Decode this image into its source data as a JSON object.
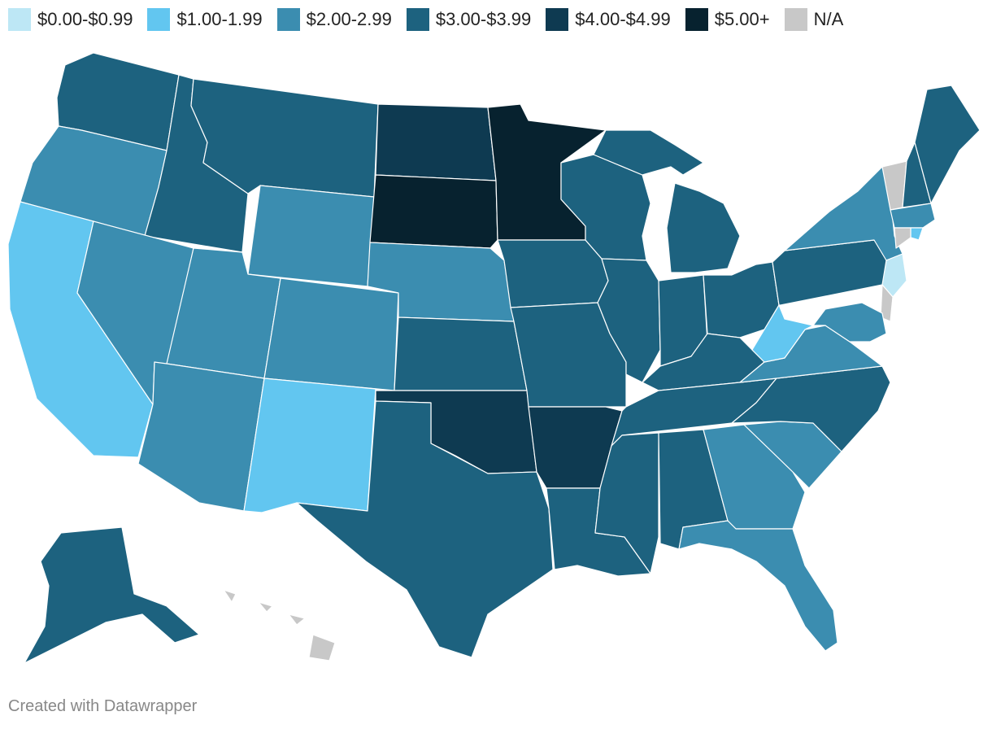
{
  "legend": [
    {
      "label": "$0.00-$0.99",
      "color": "#bde7f5"
    },
    {
      "label": "$1.00-1.99",
      "color": "#62c6f0"
    },
    {
      "label": "$2.00-2.99",
      "color": "#3b8db0"
    },
    {
      "label": "$3.00-$3.99",
      "color": "#1d627f"
    },
    {
      "label": "$4.00-$4.99",
      "color": "#0e3a51"
    },
    {
      "label": "$5.00+",
      "color": "#07222f"
    },
    {
      "label": "N/A",
      "color": "#c8c8c8"
    }
  ],
  "credit": "Created with Datawrapper",
  "map": {
    "states": [
      {
        "id": "WA",
        "cat": 3
      },
      {
        "id": "OR",
        "cat": 2
      },
      {
        "id": "CA",
        "cat": 1
      },
      {
        "id": "ID",
        "cat": 3
      },
      {
        "id": "NV",
        "cat": 2
      },
      {
        "id": "MT",
        "cat": 3
      },
      {
        "id": "WY",
        "cat": 2
      },
      {
        "id": "UT",
        "cat": 2
      },
      {
        "id": "AZ",
        "cat": 2
      },
      {
        "id": "CO",
        "cat": 2
      },
      {
        "id": "NM",
        "cat": 1
      },
      {
        "id": "ND",
        "cat": 4
      },
      {
        "id": "SD",
        "cat": 5
      },
      {
        "id": "NE",
        "cat": 2
      },
      {
        "id": "KS",
        "cat": 3
      },
      {
        "id": "OK",
        "cat": 4
      },
      {
        "id": "TX",
        "cat": 3
      },
      {
        "id": "MN",
        "cat": 5
      },
      {
        "id": "IA",
        "cat": 3
      },
      {
        "id": "MO",
        "cat": 3
      },
      {
        "id": "AR",
        "cat": 4
      },
      {
        "id": "LA",
        "cat": 3
      },
      {
        "id": "WI",
        "cat": 3
      },
      {
        "id": "IL",
        "cat": 3
      },
      {
        "id": "MI",
        "cat": 3
      },
      {
        "id": "IN",
        "cat": 3
      },
      {
        "id": "OH",
        "cat": 3
      },
      {
        "id": "KY",
        "cat": 3
      },
      {
        "id": "TN",
        "cat": 3
      },
      {
        "id": "MS",
        "cat": 3
      },
      {
        "id": "AL",
        "cat": 3
      },
      {
        "id": "GA",
        "cat": 2
      },
      {
        "id": "FL",
        "cat": 2
      },
      {
        "id": "SC",
        "cat": 2
      },
      {
        "id": "NC",
        "cat": 3
      },
      {
        "id": "VA",
        "cat": 2
      },
      {
        "id": "WV",
        "cat": 1
      },
      {
        "id": "PA",
        "cat": 3
      },
      {
        "id": "NY",
        "cat": 2
      },
      {
        "id": "VT",
        "cat": 6
      },
      {
        "id": "NH",
        "cat": 3
      },
      {
        "id": "ME",
        "cat": 3
      },
      {
        "id": "MA",
        "cat": 2
      },
      {
        "id": "RI",
        "cat": 1
      },
      {
        "id": "CT",
        "cat": 6
      },
      {
        "id": "NJ",
        "cat": 0
      },
      {
        "id": "DE",
        "cat": 6
      },
      {
        "id": "MD",
        "cat": 2
      },
      {
        "id": "AK",
        "cat": 3
      },
      {
        "id": "HI",
        "cat": 6
      }
    ]
  }
}
